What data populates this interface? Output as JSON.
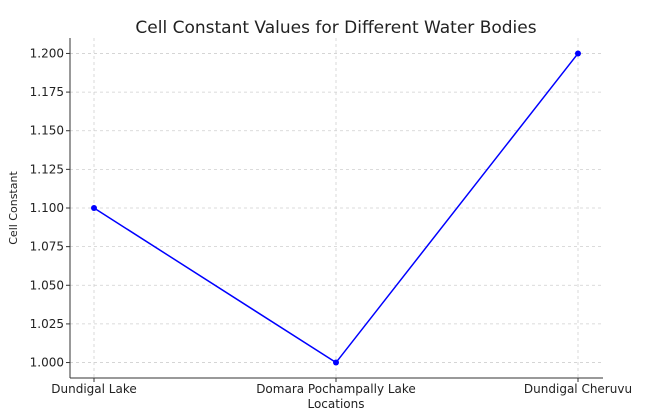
{
  "chart_data": {
    "type": "line",
    "title": "Cell Constant Values for Different Water Bodies",
    "xlabel": "Locations",
    "ylabel": "Cell Constant",
    "categories": [
      "Dundigal Lake",
      "Domara Pochampally Lake",
      "Dundigal Cheruvu"
    ],
    "series": [
      {
        "name": "Cell Constant",
        "values": [
          1.1,
          1.0,
          1.2
        ],
        "color": "#0000ff",
        "marker": "circle"
      }
    ],
    "ylim": [
      0.99,
      1.21
    ],
    "yticks": [
      "1.000",
      "1.025",
      "1.050",
      "1.075",
      "1.100",
      "1.125",
      "1.150",
      "1.175",
      "1.200"
    ],
    "grid": true
  }
}
